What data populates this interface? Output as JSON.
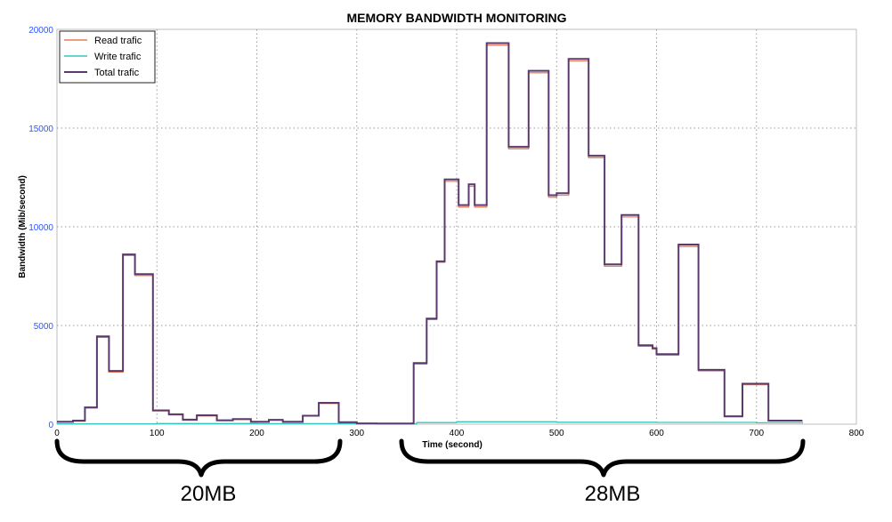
{
  "chart_data": {
    "type": "line",
    "title": "MEMORY BANDWIDTH MONITORING",
    "xlabel": "Time (second)",
    "ylabel": "Bandwidth (Mib/second)",
    "xlim": [
      0,
      800
    ],
    "ylim": [
      0,
      20000
    ],
    "xticks": [
      0,
      100,
      200,
      300,
      400,
      500,
      600,
      700,
      800
    ],
    "yticks": [
      0,
      5000,
      10000,
      15000,
      20000
    ],
    "grid": true,
    "legend_position": "top-left",
    "series": [
      {
        "name": "Read trafic",
        "color": "#e87d56",
        "x": [
          0,
          16,
          28,
          40,
          52,
          66,
          78,
          96,
          112,
          126,
          140,
          160,
          176,
          194,
          212,
          226,
          246,
          262,
          282,
          300,
          320,
          340,
          355,
          357,
          370,
          380,
          388,
          402,
          412,
          418,
          430,
          437,
          452,
          458,
          472,
          478,
          492,
          500,
          512,
          518,
          532,
          538,
          548,
          565,
          580,
          582,
          596,
          600,
          615,
          622,
          642,
          652,
          668,
          686,
          712,
          746
        ],
        "y": [
          100,
          150,
          820,
          4400,
          2640,
          8550,
          7530,
          670,
          470,
          200,
          420,
          180,
          240,
          110,
          200,
          100,
          410,
          1050,
          80,
          30,
          20,
          20,
          30,
          3050,
          5300,
          8200,
          12300,
          11000,
          12050,
          11000,
          19200,
          19200,
          13950,
          13950,
          17800,
          17800,
          11500,
          11600,
          18400,
          18400,
          13500,
          13500,
          8000,
          10500,
          10500,
          3950,
          3800,
          3500,
          3500,
          9000,
          2700,
          2700,
          380,
          2000,
          170,
          170
        ]
      },
      {
        "name": "Write trafic",
        "color": "#36c6c0",
        "x": [
          0,
          100,
          200,
          300,
          355,
          360,
          400,
          500,
          600,
          700,
          746
        ],
        "y": [
          20,
          30,
          25,
          15,
          10,
          80,
          120,
          100,
          90,
          70,
          40
        ]
      },
      {
        "name": "Total trafic",
        "color": "#5a3a6e",
        "x": [
          0,
          16,
          28,
          40,
          52,
          66,
          78,
          96,
          112,
          126,
          140,
          160,
          176,
          194,
          212,
          226,
          246,
          262,
          282,
          300,
          320,
          340,
          355,
          357,
          370,
          380,
          388,
          402,
          412,
          418,
          430,
          437,
          452,
          458,
          472,
          478,
          492,
          500,
          512,
          518,
          532,
          538,
          548,
          565,
          580,
          582,
          596,
          600,
          615,
          622,
          642,
          652,
          668,
          686,
          712,
          746
        ],
        "y": [
          120,
          180,
          850,
          4450,
          2700,
          8600,
          7600,
          700,
          500,
          230,
          450,
          200,
          260,
          120,
          220,
          120,
          430,
          1080,
          100,
          40,
          30,
          30,
          40,
          3100,
          5350,
          8250,
          12400,
          11100,
          12150,
          11100,
          19300,
          19300,
          14050,
          14050,
          17900,
          17900,
          11600,
          11700,
          18500,
          18500,
          13600,
          13600,
          8100,
          10600,
          10600,
          4000,
          3850,
          3550,
          3550,
          9100,
          2750,
          2750,
          400,
          2050,
          180,
          180
        ]
      }
    ]
  },
  "annotations": [
    {
      "text": "20MB"
    },
    {
      "text": "28MB"
    }
  ]
}
